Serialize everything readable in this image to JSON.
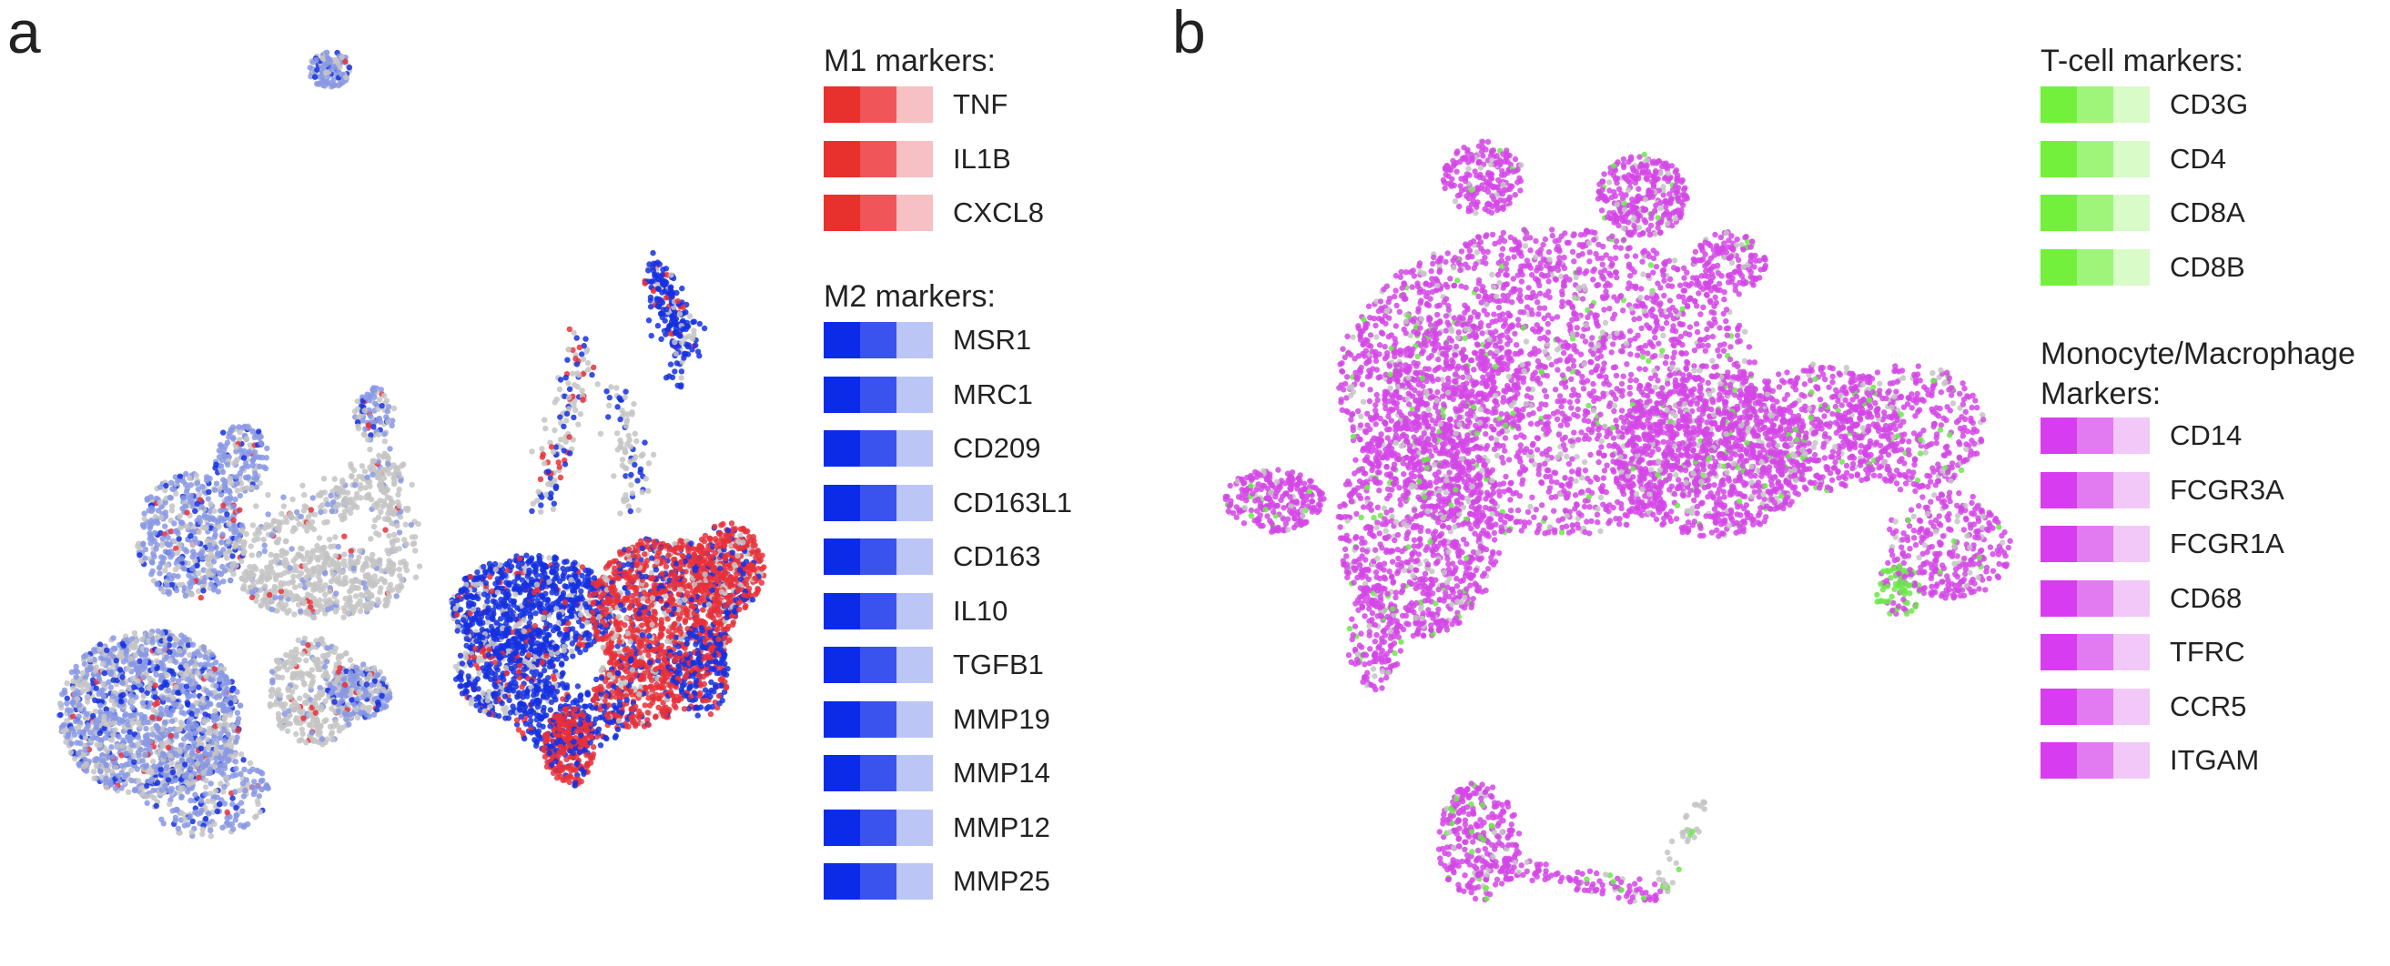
{
  "panels": [
    {
      "letter": "a"
    },
    {
      "letter": "b"
    }
  ],
  "chart_data": [
    {
      "type": "scatter",
      "panel": "a",
      "xlabel": "",
      "ylabel": "",
      "axes_visible": false,
      "legend_placement": "right",
      "legend_groups": [
        {
          "title": "M1 markers:",
          "colors": [
            "#e8302c",
            "#f05559",
            "#f6c0c4"
          ],
          "genes": [
            "TNF",
            "IL1B",
            "CXCL8"
          ]
        },
        {
          "title": "M2 markers:",
          "colors": [
            "#0a2be8",
            "#3a52ee",
            "#bcc6f6"
          ],
          "genes": [
            "MSR1",
            "MRC1",
            "CD209",
            "CD163L1",
            "CD163",
            "IL10",
            "TGFB1",
            "MMP19",
            "MMP14",
            "MMP12",
            "MMP25"
          ]
        }
      ],
      "point_colors": {
        "unexpressed": "#c4c4c4",
        "m1": "#e8303a",
        "m2": "#1530e0",
        "m2_light": "#8898e4"
      }
    },
    {
      "type": "scatter",
      "panel": "b",
      "xlabel": "",
      "ylabel": "",
      "axes_visible": false,
      "legend_placement": "right",
      "legend_groups": [
        {
          "title": "T-cell markers:",
          "colors": [
            "#72f03c",
            "#9ef57a",
            "#d8fbc8"
          ],
          "genes": [
            "CD3G",
            "CD4",
            "CD8A",
            "CD8B"
          ]
        },
        {
          "title": "Monocyte/Macrophage\nMarkers:",
          "colors": [
            "#d83cf0",
            "#e27af2",
            "#f2c8f8"
          ],
          "genes": [
            "CD14",
            "FCGR3A",
            "FCGR1A",
            "CD68",
            "TFRC",
            "CCR5",
            "ITGAM"
          ]
        }
      ],
      "point_colors": {
        "unexpressed": "#c4c4c4",
        "tcell": "#6ce84a",
        "mono": "#d347e6"
      }
    }
  ]
}
